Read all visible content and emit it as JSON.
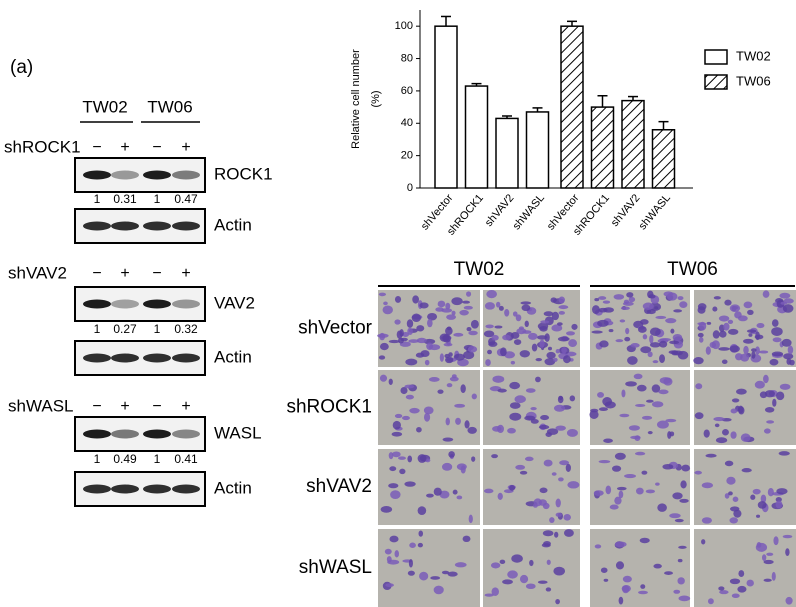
{
  "panel_label": "(a)",
  "western_blots": {
    "groups": [
      "TW02",
      "TW06"
    ],
    "blots": [
      {
        "knockdown": "shROCK1",
        "signs": [
          "−",
          "+",
          "−",
          "+"
        ],
        "target": "ROCK1",
        "quantification": [
          1,
          0.31,
          1,
          0.47
        ],
        "control": "Actin"
      },
      {
        "knockdown": "shVAV2",
        "signs": [
          "−",
          "+",
          "−",
          "+"
        ],
        "target": "VAV2",
        "quantification": [
          1,
          0.27,
          1,
          0.32
        ],
        "control": "Actin"
      },
      {
        "knockdown": "shWASL",
        "signs": [
          "−",
          "+",
          "−",
          "+"
        ],
        "target": "WASL",
        "quantification": [
          1,
          0.49,
          1,
          0.41
        ],
        "control": "Actin"
      }
    ]
  },
  "chart_data": {
    "type": "bar",
    "ylabel": [
      "Relative cell number",
      "(%)"
    ],
    "categories": [
      "shVector",
      "shROCK1",
      "shVAV2",
      "shWASL"
    ],
    "series": [
      {
        "name": "TW02",
        "color": "#ffffff",
        "hatch": false,
        "values": [
          100,
          63,
          43,
          47
        ],
        "errors": [
          6,
          1.5,
          1.5,
          2.5
        ]
      },
      {
        "name": "TW06",
        "color": "#ffffff",
        "hatch": true,
        "values": [
          100,
          50,
          54,
          36
        ],
        "errors": [
          3,
          7,
          2.5,
          5
        ]
      }
    ],
    "ylim": [
      0,
      110
    ],
    "yticks": [
      0,
      20,
      40,
      60,
      80,
      100
    ],
    "legend": "right"
  },
  "micrographs": {
    "columns": [
      "TW02",
      "TW06"
    ],
    "rows": [
      "shVector",
      "shROCK1",
      "shVAV2",
      "shWASL"
    ]
  }
}
